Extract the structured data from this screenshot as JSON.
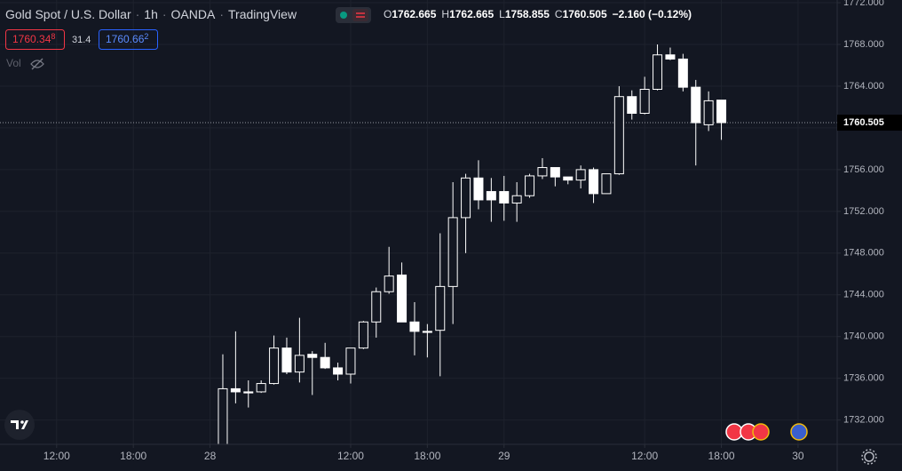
{
  "header": {
    "title_parts": [
      "Gold Spot / U.S. Dollar",
      "1h",
      "OANDA",
      "TradingView"
    ],
    "separator": "·",
    "ohlc": [
      {
        "label": "O",
        "value": "1762.665"
      },
      {
        "label": "H",
        "value": "1762.665"
      },
      {
        "label": "L",
        "value": "1758.855"
      },
      {
        "label": "C",
        "value": "1760.505"
      }
    ],
    "change": "−2.160 (−0.12%)",
    "sell": {
      "main": "1760.34",
      "sup": "8"
    },
    "spread": "31.4",
    "buy": {
      "main": "1760.66",
      "sup": "2"
    },
    "volume_label": "Vol"
  },
  "chart_data": {
    "type": "candlestick",
    "colors": {
      "up": "#131722",
      "down": "#ffffff",
      "border": "#ffffff",
      "wick": "#ffffff"
    },
    "open": [
      1729.5,
      1735.0,
      1734.7,
      1734.7,
      1735.5,
      1738.9,
      1736.6,
      1738.3,
      1738.0,
      1737.0,
      1736.4,
      1738.9,
      1741.4,
      1744.3,
      1745.9,
      1741.4,
      1740.5,
      1740.6,
      1744.8,
      1751.4,
      1755.2,
      1753.9,
      1753.9,
      1752.8,
      1753.5,
      1755.4,
      1756.2,
      1755.3,
      1755.0,
      1756.0,
      1753.7,
      1755.6,
      1763.0,
      1761.4,
      1763.7,
      1767.0,
      1766.6,
      1763.9,
      1760.3,
      1762.665
    ],
    "high": [
      1738.3,
      1740.5,
      1735.8,
      1735.8,
      1740.1,
      1739.9,
      1741.8,
      1738.6,
      1739.4,
      1737.5,
      1738.9,
      1741.5,
      1744.7,
      1748.6,
      1747.1,
      1743.3,
      1741.2,
      1749.9,
      1754.8,
      1755.6,
      1756.9,
      1755.2,
      1755.4,
      1754.8,
      1755.6,
      1757.1,
      1756.2,
      1755.3,
      1756.4,
      1756.2,
      1755.6,
      1764.0,
      1763.6,
      1764.9,
      1768.0,
      1767.7,
      1767.1,
      1764.6,
      1763.5,
      1762.665
    ],
    "low": [
      1729.0,
      1733.6,
      1733.2,
      1734.6,
      1735.4,
      1736.4,
      1735.6,
      1734.4,
      1736.9,
      1735.8,
      1735.5,
      1738.8,
      1739.9,
      1744.1,
      1741.4,
      1738.2,
      1738.0,
      1736.2,
      1741.2,
      1748.0,
      1752.2,
      1751.0,
      1751.1,
      1751.0,
      1753.3,
      1755.1,
      1754.4,
      1754.6,
      1754.2,
      1752.8,
      1753.7,
      1755.5,
      1760.8,
      1761.3,
      1763.6,
      1766.5,
      1763.5,
      1756.4,
      1759.7,
      1758.855
    ],
    "close": [
      1735.0,
      1734.7,
      1734.6,
      1735.5,
      1738.9,
      1736.6,
      1738.2,
      1738.0,
      1737.0,
      1736.4,
      1738.9,
      1741.4,
      1744.3,
      1745.8,
      1741.4,
      1740.5,
      1740.4,
      1744.8,
      1751.4,
      1755.2,
      1753.1,
      1753.1,
      1752.8,
      1753.5,
      1755.4,
      1756.2,
      1755.3,
      1755.0,
      1756.0,
      1753.7,
      1755.6,
      1763.0,
      1761.4,
      1763.7,
      1767.0,
      1766.6,
      1763.9,
      1760.5,
      1762.6,
      1760.505
    ],
    "xlim": [
      -17.43,
      48.06
    ],
    "xticks": [
      {
        "value": -13,
        "label": "12:00"
      },
      {
        "value": -7,
        "label": "18:00"
      },
      {
        "value": -1,
        "label": "28"
      },
      {
        "value": 10,
        "label": "12:00"
      },
      {
        "value": 16,
        "label": "18:00"
      },
      {
        "value": 22,
        "label": "29"
      },
      {
        "value": 33,
        "label": "12:00"
      },
      {
        "value": 39,
        "label": "18:00"
      },
      {
        "value": 45,
        "label": "30"
      }
    ],
    "ylim": [
      1729.67,
      1772.26
    ],
    "yticks": [
      {
        "value": 1732,
        "label": "1732.000"
      },
      {
        "value": 1736,
        "label": "1736.000"
      },
      {
        "value": 1740,
        "label": "1740.000"
      },
      {
        "value": 1744,
        "label": "1744.000"
      },
      {
        "value": 1748,
        "label": "1748.000"
      },
      {
        "value": 1752,
        "label": "1752.000"
      },
      {
        "value": 1756,
        "label": "1756.000"
      },
      {
        "value": 1760,
        "label": "1760.000"
      },
      {
        "value": 1764,
        "label": "1764.000"
      },
      {
        "value": 1768,
        "label": "1768.000"
      },
      {
        "value": 1772,
        "label": "1772.000"
      }
    ],
    "last_price": 1760.505,
    "grid": true
  }
}
